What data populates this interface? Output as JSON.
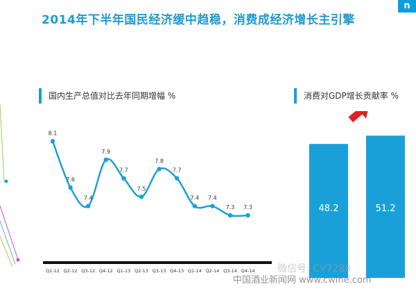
{
  "page": {
    "title": "2014年下半年国民经济缓中趋稳，消费成经济增长主引擎",
    "logo_glyph": "n",
    "accent_color": "#1aa0d8"
  },
  "watermarks": {
    "wechat": "微信号: CV7288",
    "site": "中国酒业新闻网 www.cwine.com"
  },
  "chart_data": [
    {
      "type": "line",
      "title": "国内生产总值对比去年同期增幅 %",
      "categories": [
        "Q1-12",
        "Q2-12",
        "Q3-12",
        "Q4-12",
        "Q1-13",
        "Q2-13",
        "Q3-13",
        "Q4-13",
        "Q1-14",
        "Q2-14",
        "Q3-14",
        "Q4-14"
      ],
      "series": [
        {
          "values": [
            8.1,
            7.6,
            7.4,
            7.9,
            7.7,
            7.5,
            7.8,
            7.7,
            7.4,
            7.4,
            7.3,
            7.3
          ],
          "color": "#1aa0d8"
        }
      ],
      "data_labels": [
        "8.1",
        "7.6",
        "7.4",
        "7.9",
        "7.7",
        "7.5",
        "7.8",
        "7.7",
        "7.4",
        "7.4",
        "7.3",
        "7.3"
      ],
      "ylim": [
        7.0,
        8.2
      ],
      "grid": false
    },
    {
      "type": "bar",
      "title": "消费对GDP增长贡献率 %",
      "categories": [
        "",
        ""
      ],
      "values": [
        48.2,
        51.2
      ],
      "data_labels": [
        "48.2",
        "51.2"
      ],
      "ylim": [
        0,
        60
      ],
      "color": "#1aa0d8",
      "trend_arrow": "up",
      "arrow_color": "#e02020"
    }
  ]
}
